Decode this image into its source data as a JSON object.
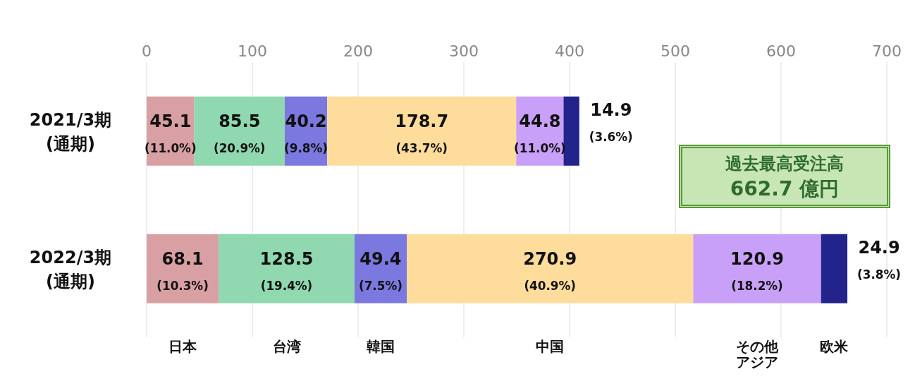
{
  "chart_data": {
    "type": "bar",
    "orientation": "horizontal",
    "stacked": true,
    "categories": [
      "2021/3期\n(通期)",
      "2022/3期\n(通期)"
    ],
    "series": [
      {
        "name": "日本",
        "color": "#d9a0a3",
        "values": [
          45.1,
          68.1
        ],
        "value_labels": [
          "45.1\n(11.0%)",
          "68.1\n(10.3%)"
        ]
      },
      {
        "name": "台湾",
        "color": "#8fd8b0",
        "values": [
          85.5,
          128.5
        ],
        "value_labels": [
          "85.5\n(20.9%)",
          "128.5\n(19.4%)"
        ]
      },
      {
        "name": "韓国",
        "color": "#7b78e0",
        "values": [
          40.2,
          49.4
        ],
        "value_labels": [
          "40.2\n(9.8%)",
          "49.4\n(7.5%)"
        ]
      },
      {
        "name": "中国",
        "color": "#fddc9c",
        "values": [
          178.7,
          270.9
        ],
        "value_labels": [
          "178.7\n(43.7%)",
          "270.9\n(40.9%)"
        ]
      },
      {
        "name": "その他アジア",
        "color": "#c9a0f7",
        "values": [
          44.8,
          120.9
        ],
        "value_labels": [
          "44.8\n(11.0%)",
          "120.9\n(18.2%)"
        ]
      },
      {
        "name": "欧米",
        "color": "#23238c",
        "values": [
          14.9,
          24.9
        ],
        "value_labels": [
          "14.9\n(3.6%)",
          "24.9\n(3.8%)"
        ]
      }
    ],
    "xlim": [
      0,
      700
    ],
    "xticks": [
      0,
      100,
      200,
      300,
      400,
      500,
      600,
      700
    ],
    "grid": "x",
    "legend": "bottom",
    "annotations": [
      "過去最高受注高\n662.7 億円"
    ]
  }
}
